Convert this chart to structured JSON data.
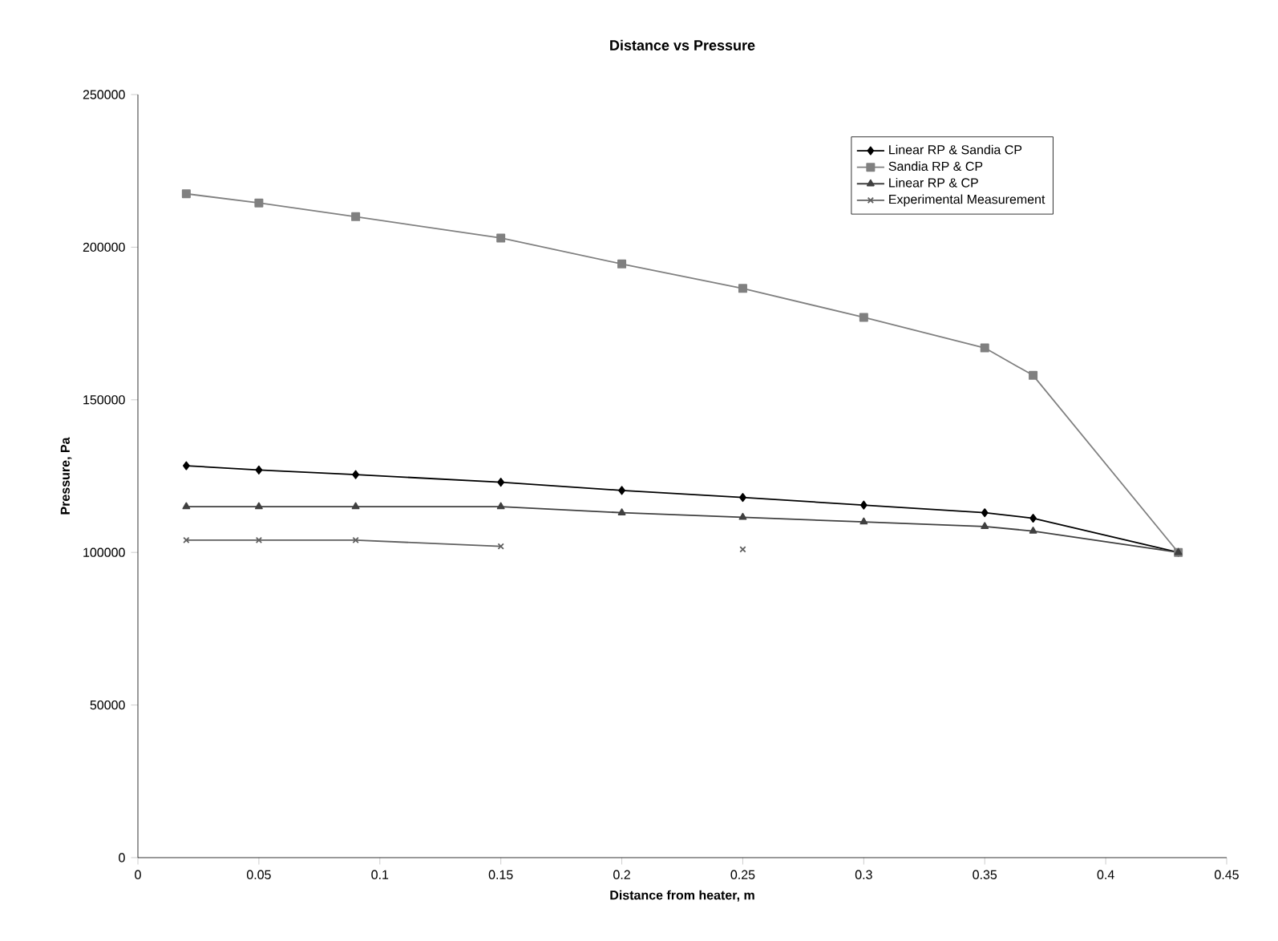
{
  "chart_data": {
    "type": "line",
    "title": "Distance vs Pressure",
    "xlabel": "Distance from heater, m",
    "ylabel": "Pressure, Pa",
    "x": [
      0.02,
      0.05,
      0.09,
      0.15,
      0.2,
      0.25,
      0.3,
      0.35,
      0.37,
      0.43
    ],
    "series": [
      {
        "name": "Linear RP & Sandia CP",
        "color": "#000000",
        "marker": "diamond",
        "values": [
          128400,
          127000,
          125500,
          123000,
          120300,
          118000,
          115500,
          113000,
          111200,
          100000
        ]
      },
      {
        "name": "Sandia RP & CP",
        "color": "#808080",
        "marker": "square",
        "values": [
          217500,
          214500,
          210000,
          203000,
          194500,
          186500,
          177000,
          167000,
          158000,
          100000
        ]
      },
      {
        "name": "Linear RP & CP",
        "color": "#404040",
        "marker": "triangle",
        "values": [
          115000,
          115000,
          115000,
          115000,
          113000,
          111500,
          110000,
          108500,
          107000,
          100000
        ]
      },
      {
        "name": "Experimental Measurement",
        "color": "#606060",
        "marker": "cross",
        "x": [
          0.02,
          0.05,
          0.09,
          0.15,
          0.2,
          0.25
        ],
        "values": [
          104000,
          104000,
          104000,
          102000,
          null,
          101000
        ]
      }
    ],
    "xlim": [
      0,
      0.45
    ],
    "xticks": [
      0,
      0.05,
      0.1,
      0.15,
      0.2,
      0.25,
      0.3,
      0.35,
      0.4,
      0.45
    ],
    "ylim": [
      0,
      250000
    ],
    "yticks": [
      0,
      50000,
      100000,
      150000,
      200000,
      250000
    ],
    "legend": "top right",
    "grid": false,
    "line_style": "solid"
  }
}
